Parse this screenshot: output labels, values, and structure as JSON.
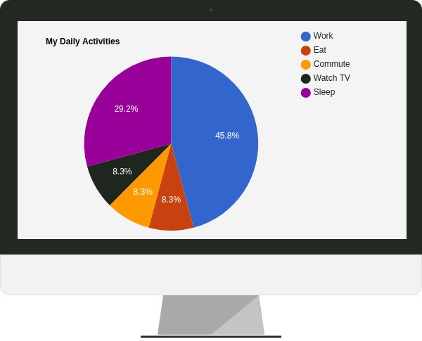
{
  "chart_data": {
    "type": "pie",
    "title": "My Daily Activities",
    "categories": [
      "Work",
      "Eat",
      "Commute",
      "Watch TV",
      "Sleep"
    ],
    "values": [
      45.8,
      8.3,
      8.3,
      8.3,
      29.2
    ],
    "value_labels": [
      "45.8%",
      "8.3%",
      "8.3%",
      "8.3%",
      "29.2%"
    ],
    "colors": [
      "#3366cc",
      "#c8410f",
      "#ff9900",
      "#1f2620",
      "#990099"
    ],
    "data_labels": true,
    "legend": "right"
  }
}
